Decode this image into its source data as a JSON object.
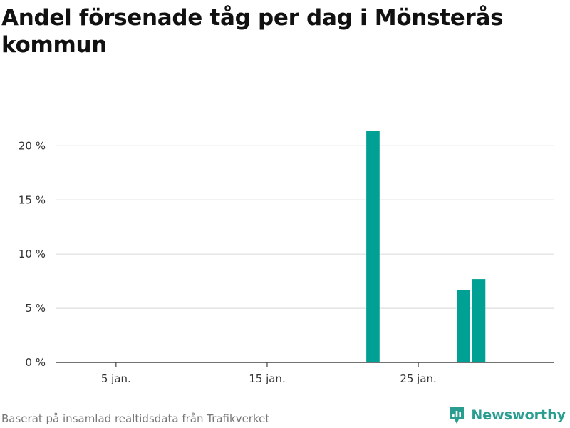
{
  "title": "Andel försenade tåg per dag i Mönsterås kommun",
  "source": "Baserat på insamlad realtidsdata från Trafikverket",
  "brand": {
    "name": "Newsworthy",
    "icon": "newsworthy-logo-icon"
  },
  "colors": {
    "bar": "#00a095",
    "grid": "#dddddd",
    "axis": "#444444",
    "brand": "#2a9d91"
  },
  "chart_data": {
    "type": "bar",
    "x": [
      22,
      28,
      29
    ],
    "values": [
      21.4,
      6.7,
      7.7
    ],
    "x_unit": "day of January",
    "xlim": [
      1,
      34
    ],
    "xticks": [
      {
        "value": 5,
        "label": "5 jan."
      },
      {
        "value": 15,
        "label": "15 jan."
      },
      {
        "value": 25,
        "label": "25 jan."
      }
    ],
    "yticks": [
      {
        "value": 0,
        "label": "0 %"
      },
      {
        "value": 5,
        "label": "5 %"
      },
      {
        "value": 10,
        "label": "10 %"
      },
      {
        "value": 15,
        "label": "15 %"
      },
      {
        "value": 20,
        "label": "20 %"
      }
    ],
    "ylim": [
      0,
      22
    ],
    "grid": true
  }
}
